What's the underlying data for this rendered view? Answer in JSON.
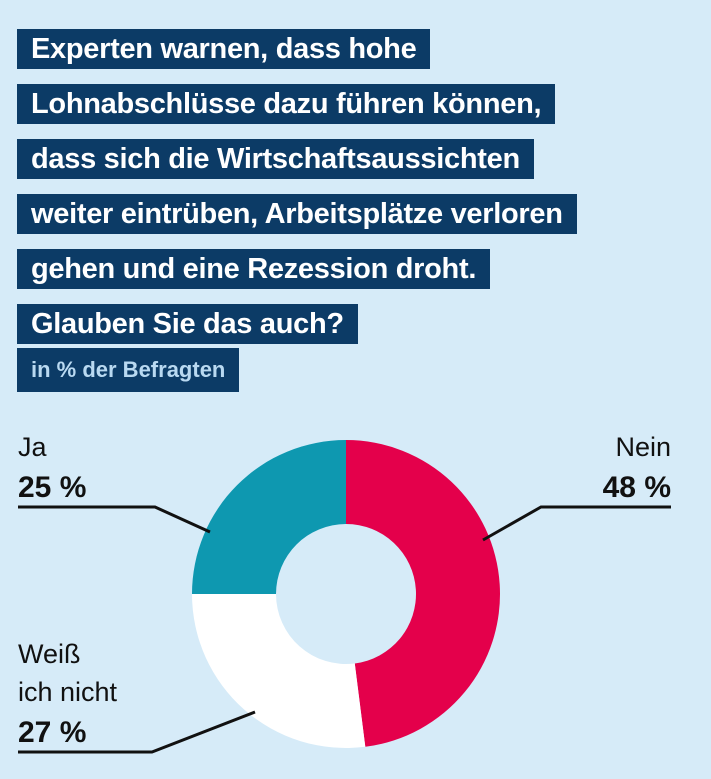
{
  "title_lines": [
    "Experten warnen, dass hohe",
    "Lohnabschlüsse dazu führen können,",
    "dass sich die Wirtschaftsaussichten",
    "weiter eintrüben, Arbeitsplätze verloren",
    "gehen und eine Rezession droht.",
    "Glauben Sie das auch?"
  ],
  "subtitle": "in % der Befragten",
  "colors": {
    "background": "#d6ebf8",
    "title_bg": "#0c3b66",
    "nein": "#e4004b",
    "weiss_nicht": "#ffffff",
    "ja": "#0e98b0"
  },
  "chart_data": {
    "type": "pie",
    "donut": true,
    "title": "Experten warnen, dass hohe Lohnabschlüsse dazu führen können, dass sich die Wirtschaftsaussichten weiter eintrüben, Arbeitsplätze verloren gehen und eine Rezession droht. Glauben Sie das auch?",
    "subtitle": "in % der Befragten",
    "unit": "%",
    "slices": [
      {
        "label": "Nein",
        "value": 48,
        "display": "48 %",
        "color": "#e4004b"
      },
      {
        "label_lines": [
          "Weiß",
          "ich nicht"
        ],
        "label": "Weiß ich nicht",
        "value": 27,
        "display": "27 %",
        "color": "#ffffff"
      },
      {
        "label": "Ja",
        "value": 25,
        "display": "25 %",
        "color": "#0e98b0"
      }
    ]
  }
}
